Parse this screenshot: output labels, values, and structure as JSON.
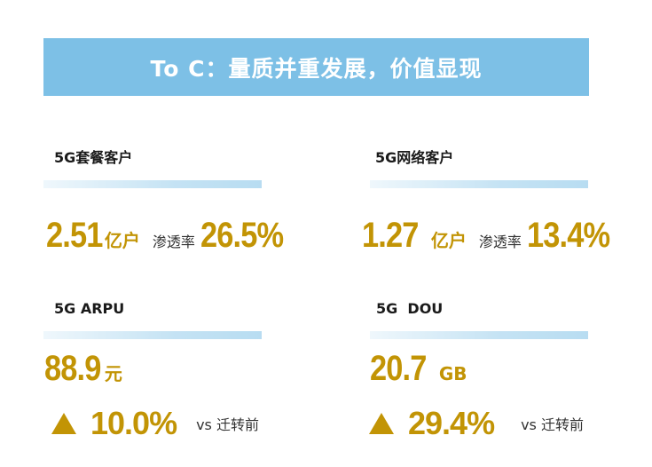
{
  "title": "To C：量质并重发展，价值显现",
  "theme_colors": {
    "banner": "#7dc0e6",
    "accent": "#c29405"
  },
  "metrics": [
    {
      "label": "5G套餐客户",
      "value": "2.51",
      "unit": "亿户",
      "extra_label": "渗透率",
      "extra_value": "26.5%"
    },
    {
      "label": "5G网络客户",
      "value": "1.27",
      "unit": "亿户",
      "extra_label": "渗透率",
      "extra_value": "13.4%"
    },
    {
      "label": "5G ARPU",
      "value": "88.9",
      "unit": "元",
      "change_icon": "up-triangle-icon",
      "change": "10.0%",
      "change_label": "vs 迁转前"
    },
    {
      "label": "5G  DOU",
      "value": "20.7",
      "unit": "GB",
      "change_icon": "up-triangle-icon",
      "change": "29.4%",
      "change_label": "vs 迁转前"
    }
  ]
}
